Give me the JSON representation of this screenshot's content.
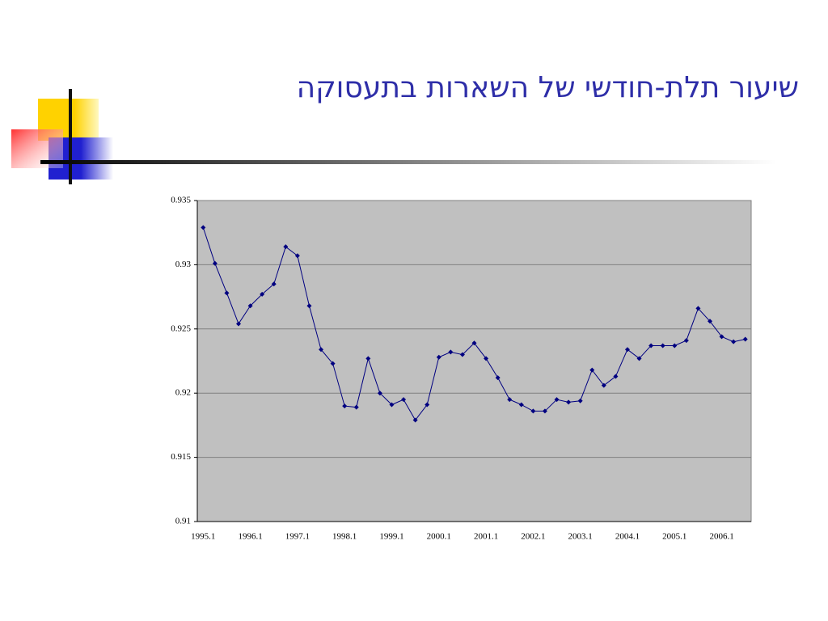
{
  "chart_data": {
    "type": "line",
    "title": "שיעור תלת-חודשי של השארות בתעסוקה",
    "categories": [
      "1995.1",
      null,
      null,
      null,
      "1996.1",
      null,
      null,
      null,
      "1997.1",
      null,
      null,
      null,
      "1998.1",
      null,
      null,
      null,
      "1999.1",
      null,
      null,
      null,
      "2000.1",
      null,
      null,
      null,
      "2001.1",
      null,
      null,
      null,
      "2002.1",
      null,
      null,
      null,
      "2003.1",
      null,
      null,
      null,
      "2004.1",
      null,
      null,
      null,
      "2005.1",
      null,
      null,
      null,
      "2006.1",
      null,
      null
    ],
    "series": [
      {
        "color": "#000080",
        "values": [
          0.9329,
          0.9301,
          0.9278,
          0.9254,
          0.9268,
          0.9277,
          0.9285,
          0.9314,
          0.9307,
          0.9268,
          0.9234,
          0.9223,
          0.919,
          0.9189,
          0.9227,
          0.92,
          0.9191,
          0.9195,
          0.9179,
          0.9191,
          0.9228,
          0.9232,
          0.923,
          0.9239,
          0.9227,
          0.9212,
          0.9195,
          0.9191,
          0.9186,
          0.9186,
          0.9195,
          0.9193,
          0.9194,
          0.9218,
          0.9206,
          0.9213,
          0.9234,
          0.9227,
          0.9237,
          0.9237,
          0.9237,
          0.9241,
          0.9266,
          0.9256,
          0.9244,
          0.924,
          0.9242
        ]
      }
    ],
    "ylim": [
      0.91,
      0.935
    ],
    "yticks": [
      0.91,
      0.915,
      0.92,
      0.925,
      0.93,
      0.935
    ],
    "grid": true
  }
}
